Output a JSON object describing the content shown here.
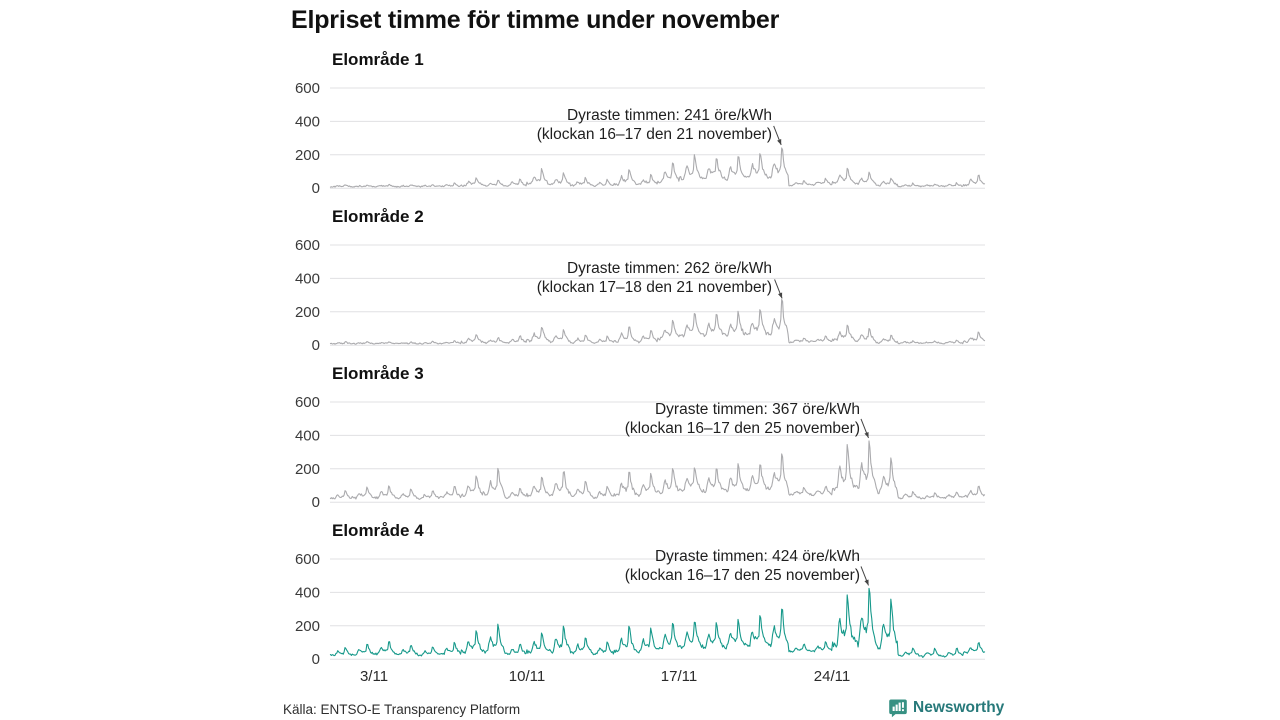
{
  "title": "Elpriset timme för timme under november",
  "source": "Källa: ENTSO-E Transparency Platform",
  "logo": {
    "text": "Newsworthy",
    "icon": "newsworthy-bar-chart-bubble-icon",
    "color": "#27797a",
    "icon_color": "#379183"
  },
  "colors": {
    "gridline": "#e0e0e3",
    "gray_series": "#ababae",
    "teal_series": "#17998b",
    "arrow": "#444444"
  },
  "chart_data": {
    "type": "line",
    "unit": "öre/kWh",
    "grid": "horizontal-only",
    "x_axis": {
      "ticks": [
        "3/11",
        "10/11",
        "17/11",
        "24/11"
      ],
      "tick_days": [
        3,
        10,
        17,
        24
      ],
      "days": 30
    },
    "y_axis": {
      "ticks": [
        0,
        200,
        400,
        600
      ],
      "max": 600
    },
    "diurnal_template": [
      0.14,
      0.1,
      0.08,
      0.07,
      0.08,
      0.13,
      0.3,
      0.45,
      0.55,
      0.44,
      0.36,
      0.32,
      0.3,
      0.29,
      0.33,
      0.45,
      1.0,
      0.92,
      0.62,
      0.45,
      0.36,
      0.28,
      0.2,
      0.15
    ],
    "panels": [
      {
        "label": "Elområde 1",
        "color": "#ababae",
        "annotation": {
          "line1": "Dyraste timmen: 241 öre/kWh",
          "line2": "(klockan 16–17 den 21 november)",
          "peak_value": 241,
          "peak_day": 21,
          "peak_hour": 16
        },
        "daily_low": [
          8,
          8,
          8,
          8,
          8,
          9,
          12,
          10,
          12,
          18,
          15,
          12,
          10,
          14,
          15,
          30,
          45,
          50,
          45,
          50,
          45,
          15,
          18,
          25,
          20,
          12,
          10,
          10,
          10,
          14
        ],
        "daily_peak": [
          20,
          18,
          22,
          20,
          22,
          28,
          62,
          45,
          55,
          112,
          90,
          60,
          50,
          115,
          85,
          150,
          195,
          185,
          195,
          210,
          241,
          45,
          55,
          115,
          95,
          60,
          28,
          25,
          30,
          78
        ]
      },
      {
        "label": "Elområde 2",
        "color": "#ababae",
        "annotation": {
          "line1": "Dyraste timmen: 262 öre/kWh",
          "line2": "(klockan 17–18 den 21 november)",
          "peak_value": 262,
          "peak_day": 21,
          "peak_hour": 17
        },
        "daily_low": [
          8,
          8,
          8,
          8,
          8,
          9,
          12,
          10,
          12,
          18,
          15,
          12,
          10,
          14,
          15,
          30,
          45,
          50,
          45,
          50,
          45,
          15,
          18,
          25,
          20,
          12,
          10,
          10,
          10,
          14
        ],
        "daily_peak": [
          20,
          18,
          22,
          20,
          22,
          28,
          62,
          45,
          55,
          112,
          90,
          60,
          50,
          115,
          85,
          150,
          195,
          185,
          195,
          210,
          262,
          45,
          55,
          115,
          95,
          60,
          28,
          25,
          30,
          78
        ]
      },
      {
        "label": "Elområde 3",
        "color": "#ababae",
        "annotation": {
          "line1": "Dyraste timmen: 367 öre/kWh",
          "line2": "(klockan 16–17 den 25 november)",
          "peak_value": 367,
          "peak_day": 25,
          "peak_hour": 16
        },
        "daily_low": [
          18,
          20,
          22,
          20,
          18,
          22,
          28,
          30,
          22,
          28,
          30,
          28,
          22,
          30,
          32,
          45,
          55,
          55,
          55,
          60,
          55,
          40,
          40,
          55,
          60,
          45,
          22,
          20,
          22,
          30
        ],
        "daily_peak": [
          65,
          85,
          95,
          75,
          70,
          95,
          160,
          195,
          85,
          150,
          185,
          120,
          95,
          185,
          170,
          200,
          215,
          205,
          220,
          235,
          290,
          85,
          95,
          330,
          367,
          255,
          65,
          55,
          60,
          95
        ]
      },
      {
        "label": "Elområde 4",
        "color": "#17998b",
        "annotation": {
          "line1": "Dyraste timmen: 424 öre/kWh",
          "line2": "(klockan 16–17 den 25 november)",
          "peak_value": 424,
          "peak_day": 25,
          "peak_hour": 16
        },
        "daily_low": [
          18,
          22,
          25,
          22,
          20,
          25,
          30,
          32,
          25,
          30,
          32,
          30,
          25,
          32,
          35,
          50,
          60,
          60,
          60,
          65,
          60,
          42,
          45,
          60,
          65,
          50,
          15,
          12,
          15,
          32
        ],
        "daily_peak": [
          70,
          90,
          110,
          85,
          75,
          100,
          170,
          200,
          90,
          160,
          195,
          130,
          100,
          195,
          180,
          210,
          230,
          215,
          235,
          250,
          305,
          90,
          100,
          380,
          424,
          350,
          70,
          60,
          65,
          100
        ]
      }
    ]
  }
}
